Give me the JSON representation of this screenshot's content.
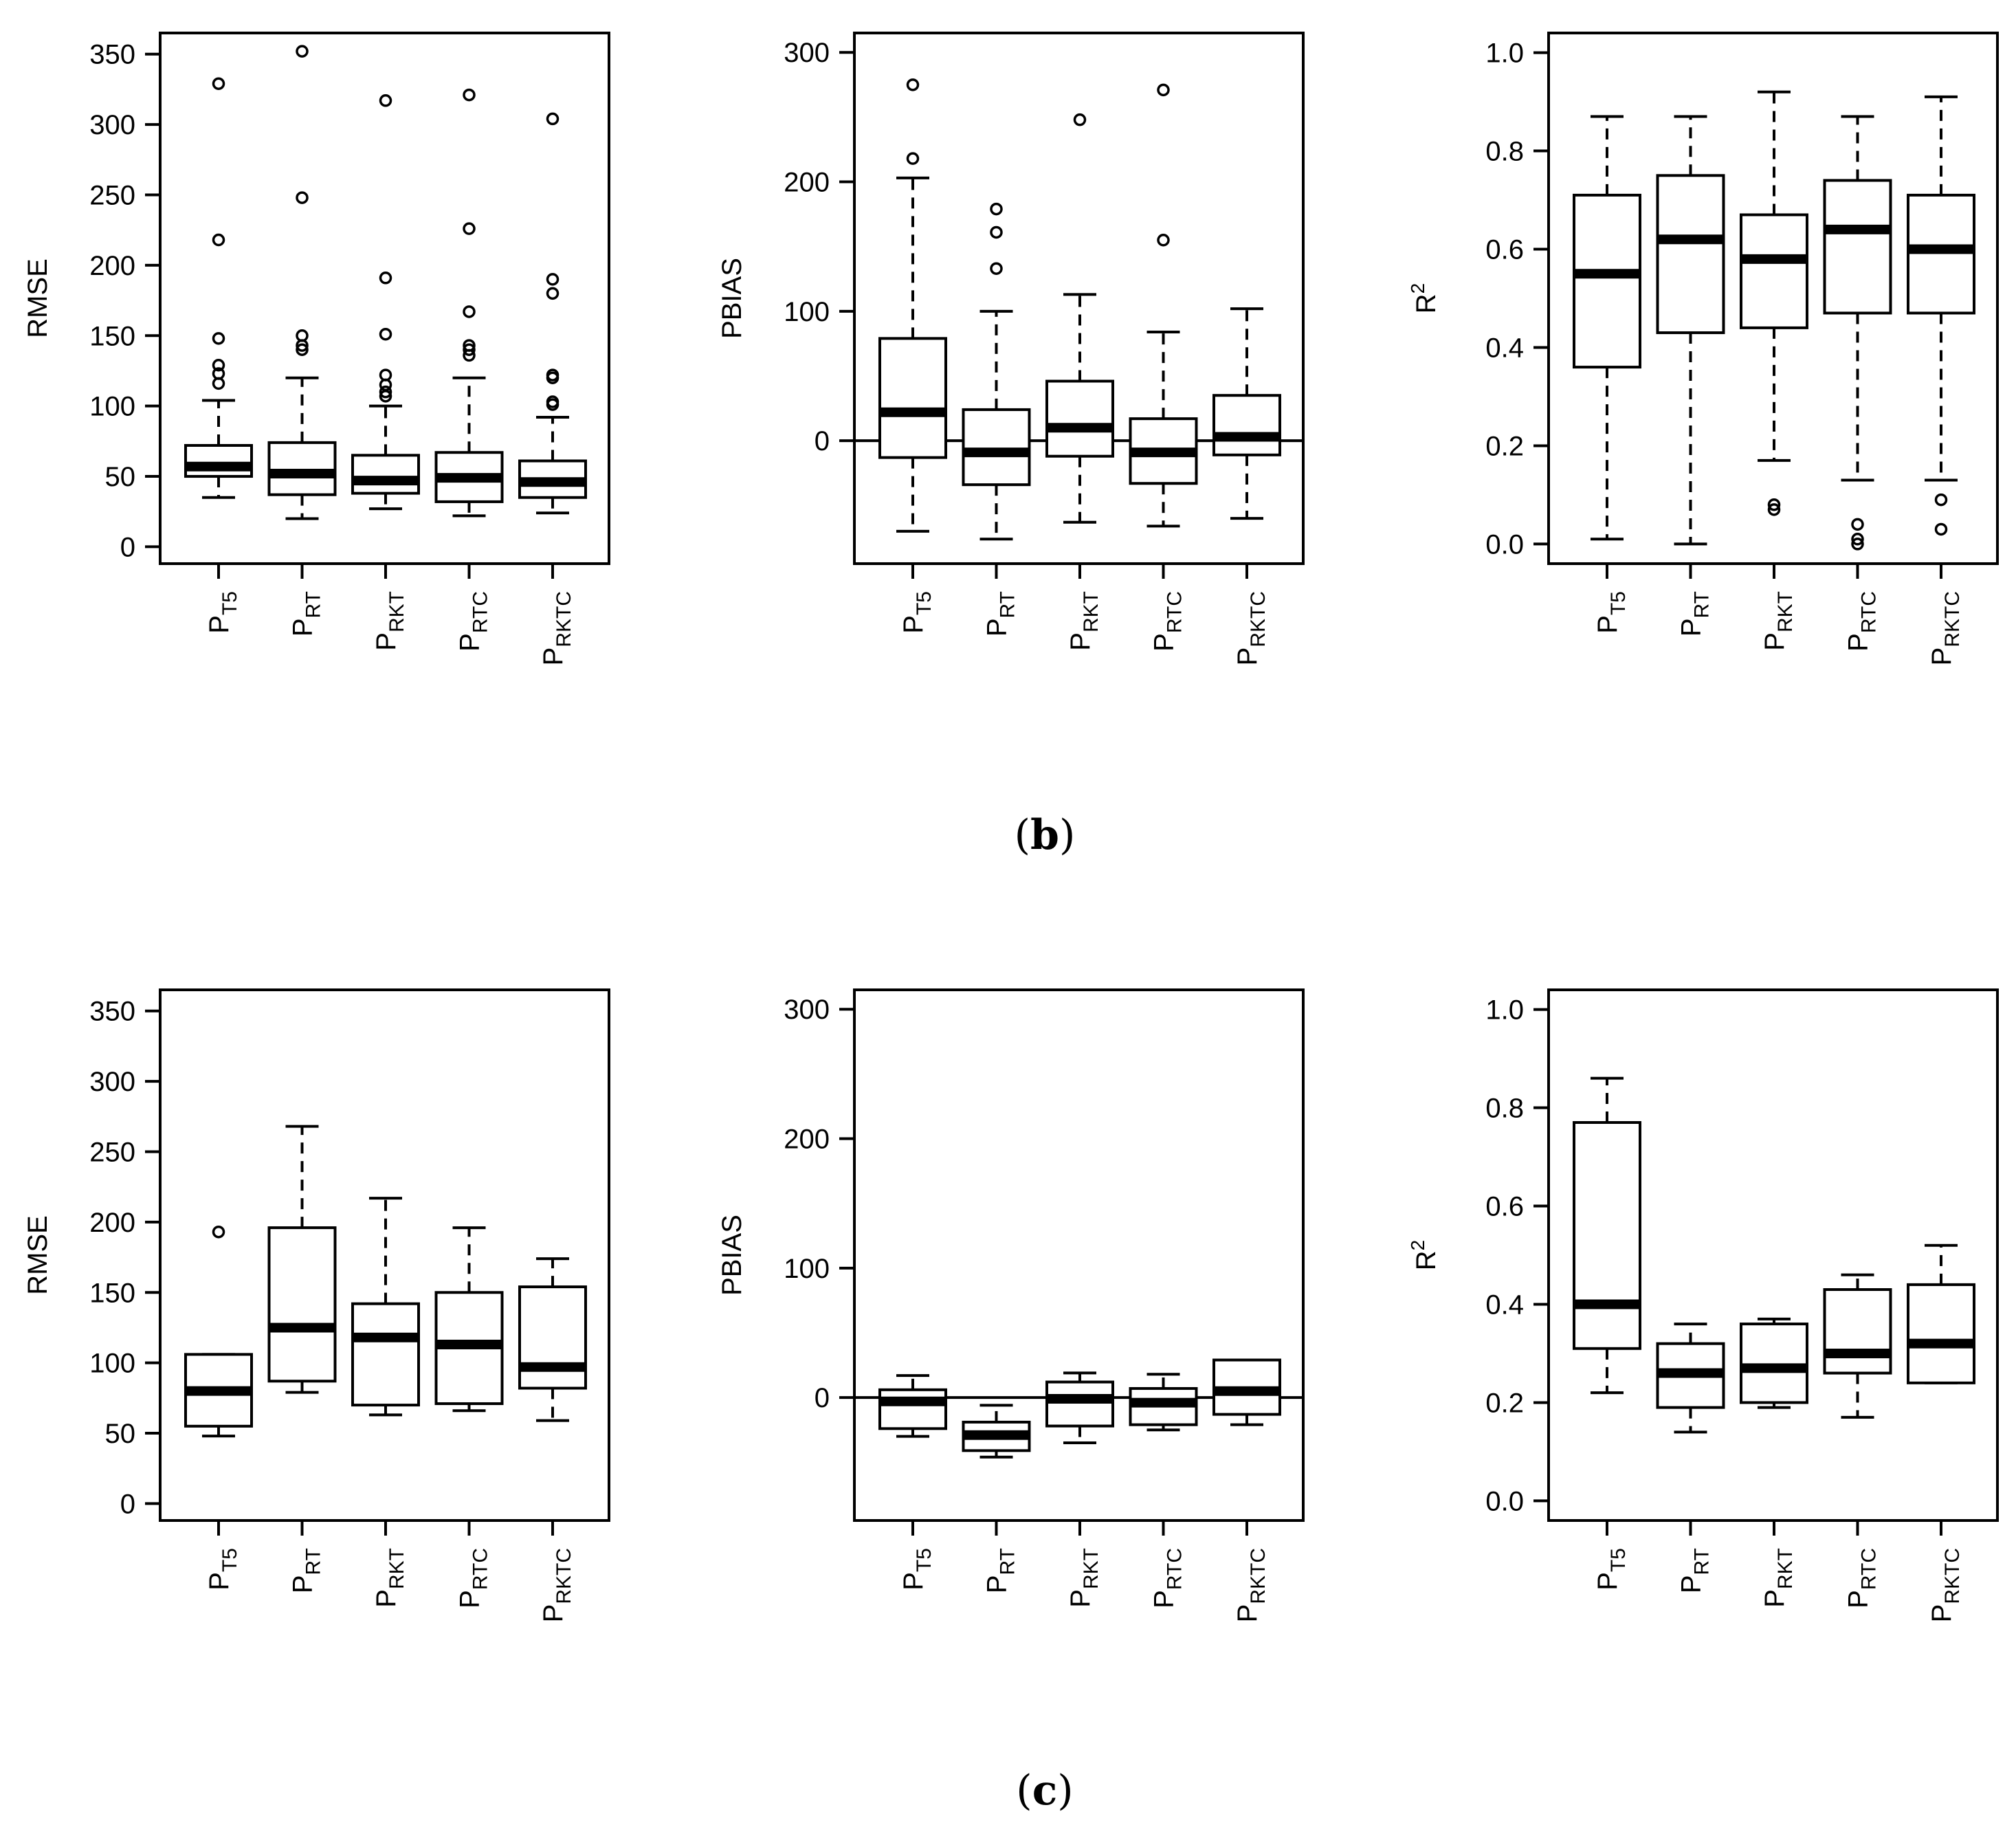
{
  "captions": {
    "panel_b": "b",
    "panel_c": "c"
  },
  "category_labels": [
    {
      "base": "P",
      "sub": "T5"
    },
    {
      "base": "P",
      "sub": "RT"
    },
    {
      "base": "P",
      "sub": "RKT"
    },
    {
      "base": "P",
      "sub": "RTC"
    },
    {
      "base": "P",
      "sub": "RKTC"
    }
  ],
  "chart_data": [
    {
      "id": "b-rmse",
      "panel": "b",
      "type": "box",
      "ylabel": "RMSE",
      "ylabel_sup": "",
      "ylim": [
        -12,
        365
      ],
      "yticks": [
        0,
        50,
        100,
        150,
        200,
        250,
        300,
        350
      ],
      "zero_line": false,
      "boxes": [
        {
          "lw": 35,
          "q1": 50,
          "med": 57,
          "q3": 72,
          "uw": 104,
          "out": [
            116,
            123,
            129,
            148,
            218,
            329
          ]
        },
        {
          "lw": 20,
          "q1": 37,
          "med": 52,
          "q3": 74,
          "uw": 120,
          "out": [
            140,
            143,
            150,
            248,
            352
          ]
        },
        {
          "lw": 27,
          "q1": 38,
          "med": 47,
          "q3": 65,
          "uw": 100,
          "out": [
            107,
            110,
            115,
            122,
            151,
            191,
            317
          ]
        },
        {
          "lw": 22,
          "q1": 32,
          "med": 49,
          "q3": 67,
          "uw": 120,
          "out": [
            136,
            140,
            143,
            167,
            226,
            321
          ]
        },
        {
          "lw": 24,
          "q1": 35,
          "med": 46,
          "q3": 61,
          "uw": 92,
          "out": [
            101,
            103,
            120,
            122,
            180,
            190,
            304
          ]
        }
      ]
    },
    {
      "id": "b-pbias",
      "panel": "b",
      "type": "box",
      "ylabel": "PBIAS",
      "ylabel_sup": "",
      "ylim": [
        -95,
        315
      ],
      "yticks": [
        0,
        100,
        200,
        300
      ],
      "zero_line": true,
      "boxes": [
        {
          "lw": -70,
          "q1": -13,
          "med": 22,
          "q3": 79,
          "uw": 203,
          "out": [
            218,
            275
          ]
        },
        {
          "lw": -76,
          "q1": -34,
          "med": -9,
          "q3": 24,
          "uw": 100,
          "out": [
            133,
            161,
            179
          ]
        },
        {
          "lw": -63,
          "q1": -12,
          "med": 10,
          "q3": 46,
          "uw": 113,
          "out": [
            248
          ]
        },
        {
          "lw": -66,
          "q1": -33,
          "med": -9,
          "q3": 17,
          "uw": 84,
          "out": [
            155,
            271
          ]
        },
        {
          "lw": -60,
          "q1": -11,
          "med": 3,
          "q3": 35,
          "uw": 102,
          "out": []
        }
      ]
    },
    {
      "id": "b-r2",
      "panel": "b",
      "type": "box",
      "ylabel": "R",
      "ylabel_sup": "2",
      "ylim": [
        -0.04,
        1.04
      ],
      "yticks": [
        0.0,
        0.2,
        0.4,
        0.6,
        0.8,
        1.0
      ],
      "zero_line": false,
      "boxes": [
        {
          "lw": 0.01,
          "q1": 0.36,
          "med": 0.55,
          "q3": 0.71,
          "uw": 0.87,
          "out": []
        },
        {
          "lw": 0.0,
          "q1": 0.43,
          "med": 0.62,
          "q3": 0.75,
          "uw": 0.87,
          "out": []
        },
        {
          "lw": 0.17,
          "q1": 0.44,
          "med": 0.58,
          "q3": 0.67,
          "uw": 0.92,
          "out": [
            0.07,
            0.08
          ]
        },
        {
          "lw": 0.13,
          "q1": 0.47,
          "med": 0.64,
          "q3": 0.74,
          "uw": 0.87,
          "out": [
            0.0,
            0.01,
            0.04
          ]
        },
        {
          "lw": 0.13,
          "q1": 0.47,
          "med": 0.6,
          "q3": 0.71,
          "uw": 0.91,
          "out": [
            0.03,
            0.09
          ]
        }
      ]
    },
    {
      "id": "c-rmse",
      "panel": "c",
      "type": "box",
      "ylabel": "RMSE",
      "ylabel_sup": "",
      "ylim": [
        -12,
        365
      ],
      "yticks": [
        0,
        50,
        100,
        150,
        200,
        250,
        300,
        350
      ],
      "zero_line": false,
      "boxes": [
        {
          "lw": 48,
          "q1": 55,
          "med": 80,
          "q3": 106,
          "uw": 106,
          "out": [
            193
          ]
        },
        {
          "lw": 79,
          "q1": 87,
          "med": 125,
          "q3": 196,
          "uw": 268,
          "out": []
        },
        {
          "lw": 63,
          "q1": 70,
          "med": 118,
          "q3": 142,
          "uw": 217,
          "out": []
        },
        {
          "lw": 66,
          "q1": 71,
          "med": 113,
          "q3": 150,
          "uw": 196,
          "out": []
        },
        {
          "lw": 59,
          "q1": 82,
          "med": 97,
          "q3": 154,
          "uw": 174,
          "out": []
        }
      ]
    },
    {
      "id": "c-pbias",
      "panel": "c",
      "type": "box",
      "ylabel": "PBIAS",
      "ylabel_sup": "",
      "ylim": [
        -95,
        315
      ],
      "yticks": [
        0,
        100,
        200,
        300
      ],
      "zero_line": true,
      "boxes": [
        {
          "lw": -30,
          "q1": -24,
          "med": -3,
          "q3": 6,
          "uw": 17,
          "out": []
        },
        {
          "lw": -46,
          "q1": -41,
          "med": -29,
          "q3": -19,
          "uw": -6,
          "out": []
        },
        {
          "lw": -35,
          "q1": -22,
          "med": -1,
          "q3": 12,
          "uw": 19,
          "out": []
        },
        {
          "lw": -25,
          "q1": -21,
          "med": -4,
          "q3": 7,
          "uw": 18,
          "out": []
        },
        {
          "lw": -21,
          "q1": -13,
          "med": 5,
          "q3": 29,
          "uw": 29,
          "out": []
        }
      ]
    },
    {
      "id": "c-r2",
      "panel": "c",
      "type": "box",
      "ylabel": "R",
      "ylabel_sup": "2",
      "ylim": [
        -0.04,
        1.04
      ],
      "yticks": [
        0.0,
        0.2,
        0.4,
        0.6,
        0.8,
        1.0
      ],
      "zero_line": false,
      "boxes": [
        {
          "lw": 0.22,
          "q1": 0.31,
          "med": 0.4,
          "q3": 0.77,
          "uw": 0.86,
          "out": []
        },
        {
          "lw": 0.14,
          "q1": 0.19,
          "med": 0.26,
          "q3": 0.32,
          "uw": 0.36,
          "out": []
        },
        {
          "lw": 0.19,
          "q1": 0.2,
          "med": 0.27,
          "q3": 0.36,
          "uw": 0.37,
          "out": []
        },
        {
          "lw": 0.17,
          "q1": 0.26,
          "med": 0.3,
          "q3": 0.43,
          "uw": 0.46,
          "out": []
        },
        {
          "lw": 0.24,
          "q1": 0.24,
          "med": 0.32,
          "q3": 0.44,
          "uw": 0.52,
          "out": []
        }
      ]
    }
  ]
}
